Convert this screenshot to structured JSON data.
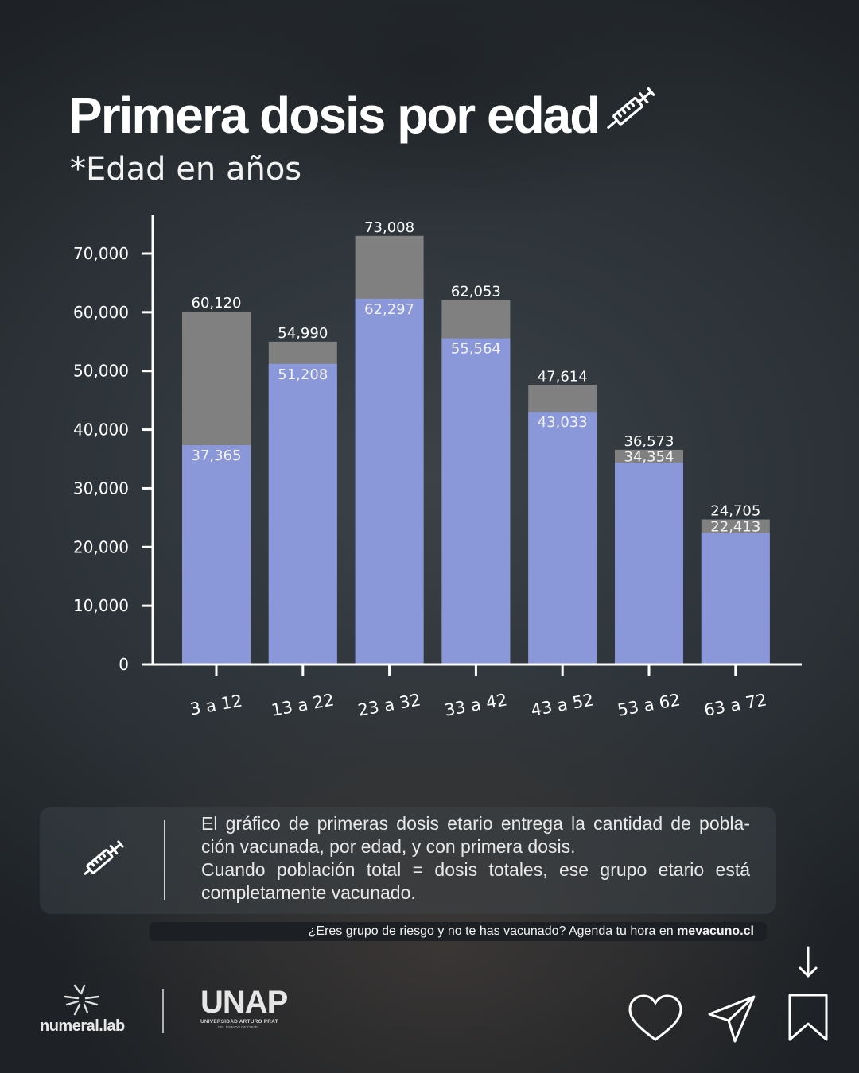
{
  "header": {
    "title": "Primera dosis por edad",
    "subtitle": "*Edad en años",
    "title_icon": "syringe-icon"
  },
  "chart_data": {
    "type": "bar",
    "title": "Primera dosis por edad",
    "subtitle": "*Edad en años",
    "xlabel": "",
    "ylabel": "",
    "categories": [
      "3 a 12",
      "13 a 22",
      "23 a 32",
      "33 a 42",
      "43 a 52",
      "53 a 62",
      "63 a 72"
    ],
    "series": [
      {
        "name": "",
        "role": "primera dosis",
        "values": [
          37365,
          51208,
          62297,
          55564,
          43033,
          34354,
          22413
        ],
        "color": "#8a97d8"
      },
      {
        "name": "",
        "role": "población total",
        "values": [
          60120,
          54990,
          73008,
          62053,
          47614,
          36573,
          24705
        ],
        "color": "#808080"
      }
    ],
    "value_labels": {
      "first_dose": [
        "37,365",
        "51,208",
        "62,297",
        "55,564",
        "43,033",
        "34,354",
        "22,413"
      ],
      "population": [
        "60,120",
        "54,990",
        "73,008",
        "62,053",
        "47,614",
        "36,573",
        "24,705"
      ]
    },
    "yticks": [
      0,
      10000,
      20000,
      30000,
      40000,
      50000,
      60000,
      70000
    ],
    "ytick_labels": [
      "0",
      "10,000",
      "20,000",
      "30,000",
      "40,000",
      "50,000",
      "60,000",
      "70,000"
    ],
    "ylim": [
      0,
      76000
    ],
    "grid": false,
    "legend": "none",
    "overlay": true
  },
  "info": {
    "icon": "syringe-icon",
    "line1": "El gráfico de primeras dosis etario entrega la cantidad de pobla-ción vacunada, por edad, y con primera dosis.",
    "line2": "Cuando población total = dosis totales, ese grupo etario está completamente vacunado."
  },
  "cta": {
    "text": "¿Eres grupo de riesgo y no te has vacunado? Agenda tu hora en ",
    "link": "mevacuno.cl"
  },
  "footer": {
    "logo1": "numeral.lab",
    "logo2": "UNAP",
    "logo2_line1": "UNIVERSIDAD ARTURO PRAT",
    "logo2_line2": "DEL ESTADO DE CHILE",
    "icons": [
      "arrow-down-icon",
      "heart-icon",
      "send-icon",
      "bookmark-icon"
    ]
  },
  "colors": {
    "first_dose": "#8a97d8",
    "population": "#808080",
    "axis": "#ffffff"
  }
}
